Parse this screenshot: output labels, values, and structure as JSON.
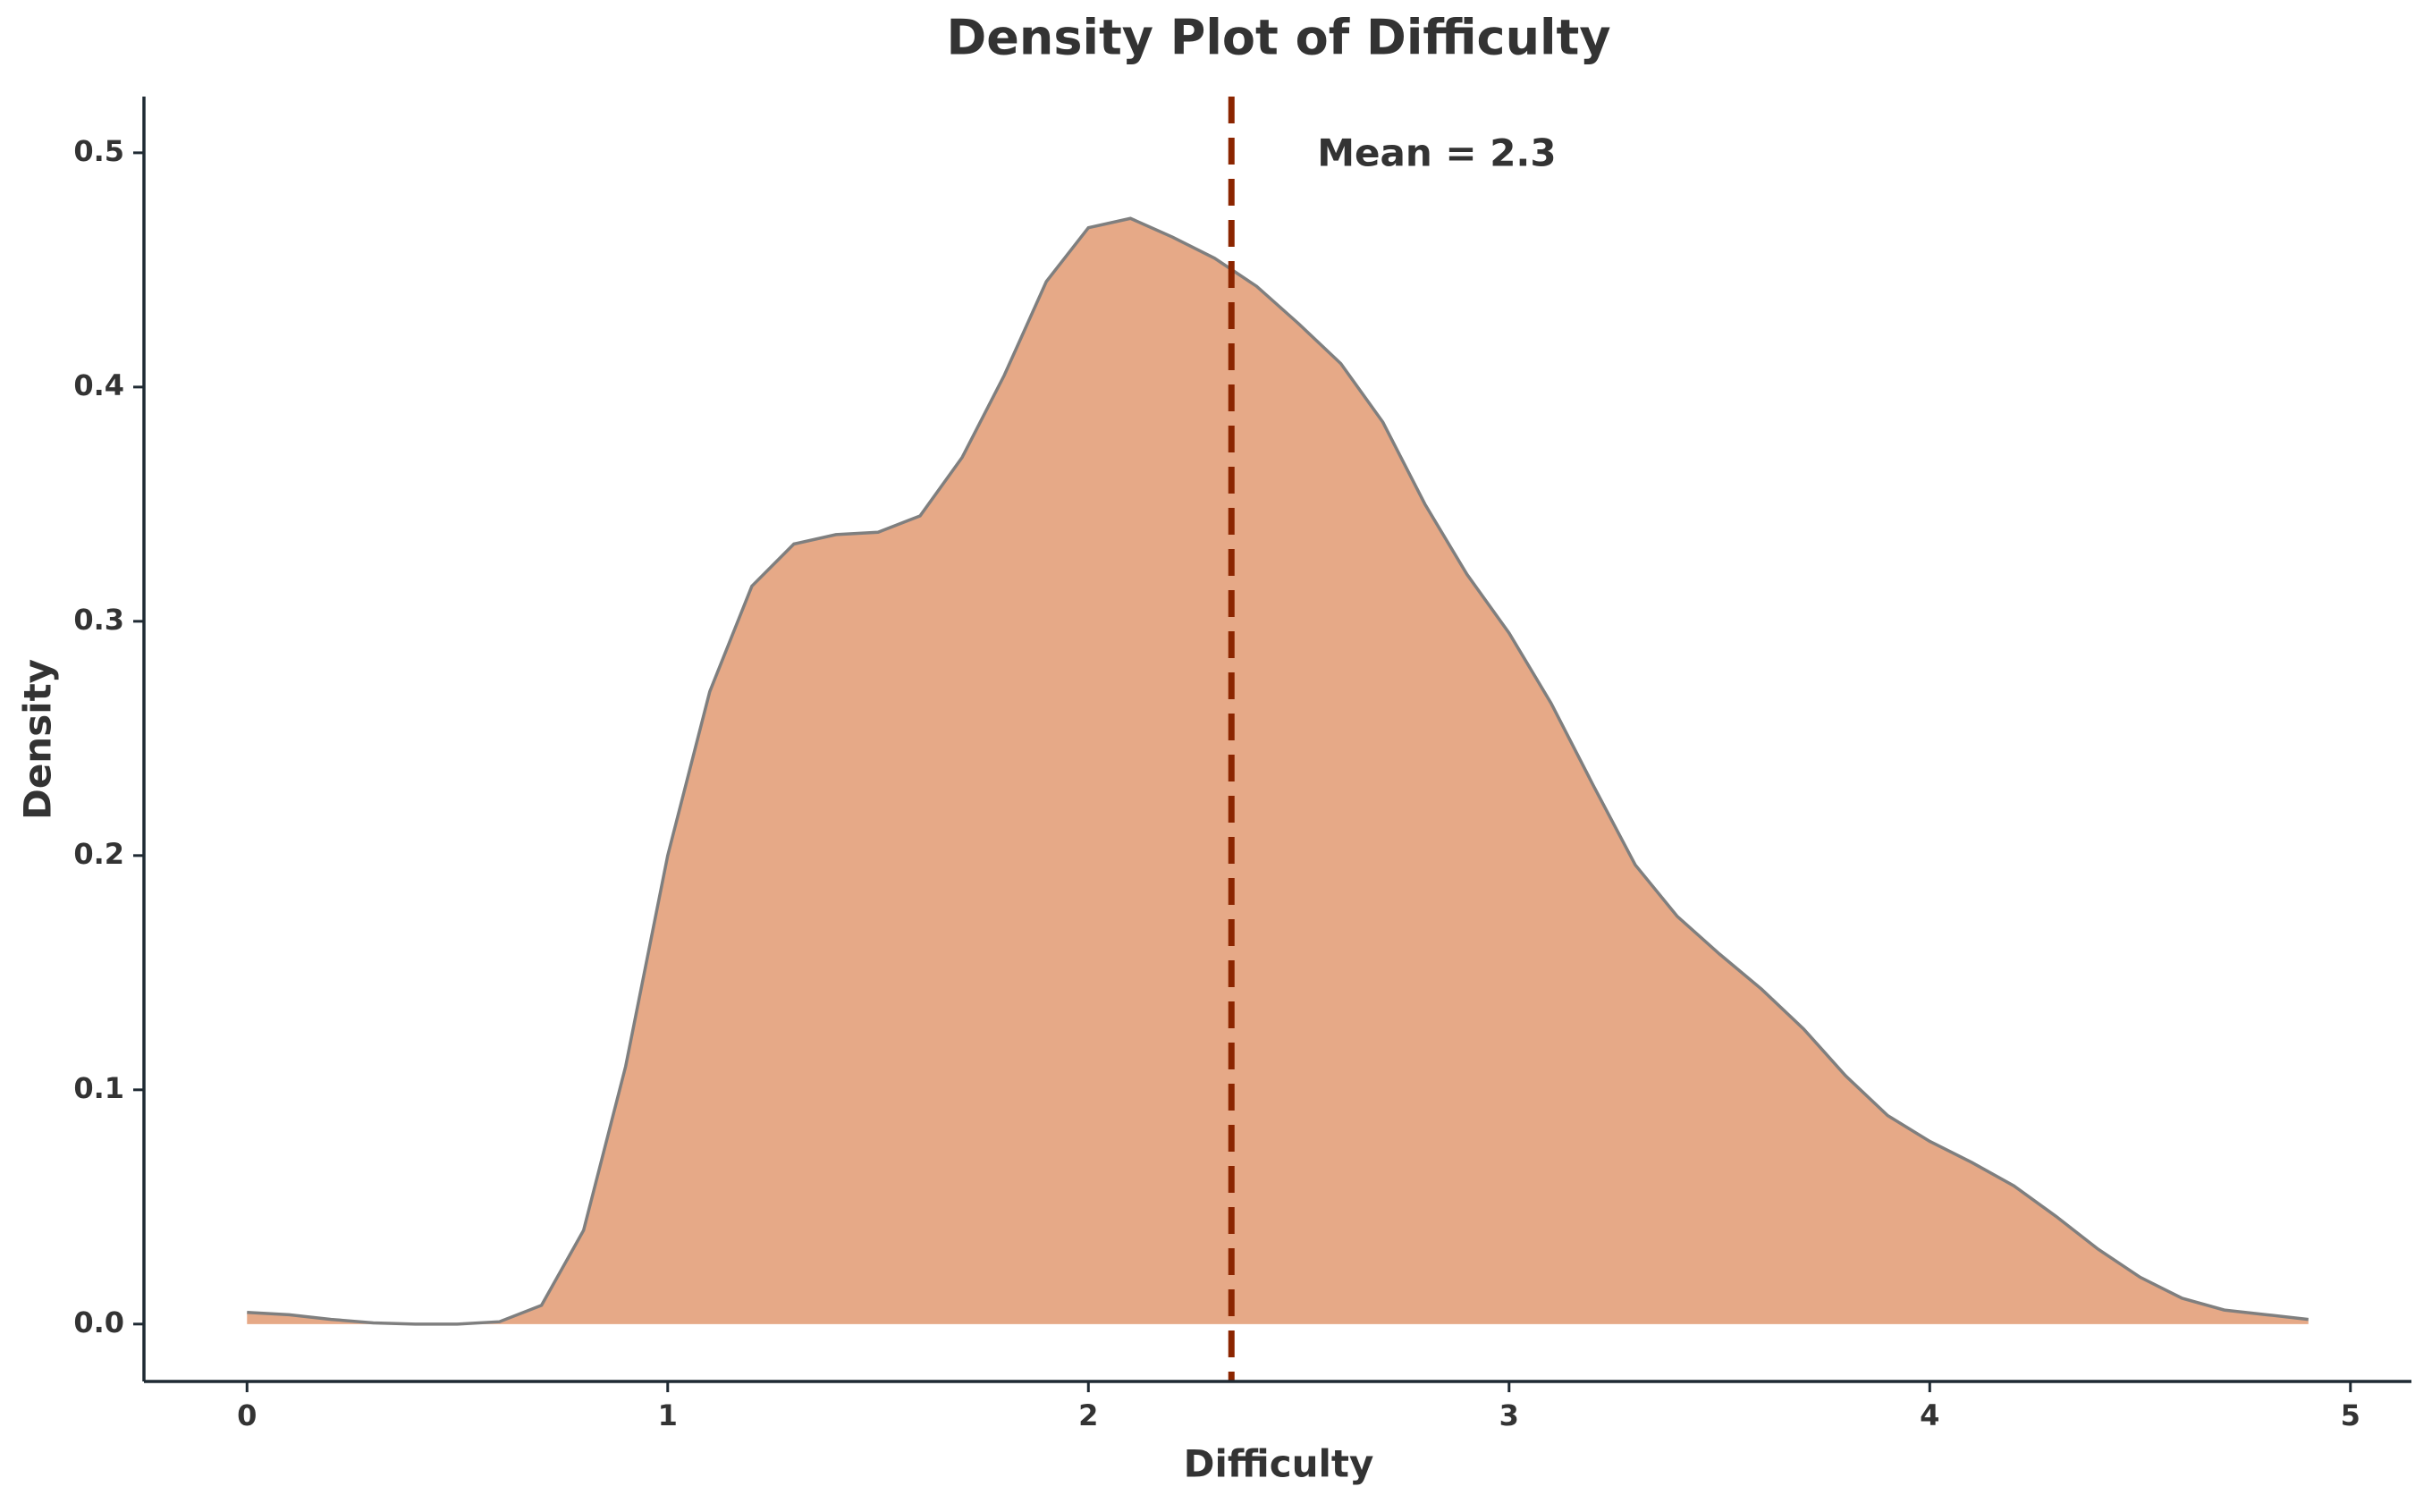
{
  "chart_data": {
    "type": "density",
    "title": "Density Plot of Difficulty",
    "x_label": "Difficulty",
    "y_label": "Density",
    "x": [
      0,
      0.1,
      0.2,
      0.3,
      0.4,
      0.5,
      0.6,
      0.7,
      0.8,
      0.9,
      1.0,
      1.1,
      1.2,
      1.3,
      1.4,
      1.5,
      1.6,
      1.7,
      1.8,
      1.9,
      2.0,
      2.1,
      2.2,
      2.3,
      2.4,
      2.5,
      2.6,
      2.7,
      2.8,
      2.9,
      3.0,
      3.1,
      3.2,
      3.3,
      3.4,
      3.5,
      3.6,
      3.7,
      3.8,
      3.9,
      4.0,
      4.1,
      4.2,
      4.3,
      4.4,
      4.5,
      4.6,
      4.7,
      4.8,
      4.9
    ],
    "values": [
      0.005,
      0.004,
      0.002,
      0.0005,
      0,
      0,
      0.001,
      0.008,
      0.04,
      0.11,
      0.2,
      0.27,
      0.315,
      0.333,
      0.337,
      0.338,
      0.345,
      0.37,
      0.405,
      0.445,
      0.468,
      0.472,
      0.464,
      0.455,
      0.443,
      0.427,
      0.41,
      0.385,
      0.35,
      0.32,
      0.295,
      0.265,
      0.23,
      0.196,
      0.174,
      0.158,
      0.143,
      0.126,
      0.106,
      0.089,
      0.078,
      0.069,
      0.059,
      0.046,
      0.032,
      0.02,
      0.011,
      0.006,
      0.004,
      0.002
    ],
    "fill_color": "#e6a987",
    "line_color": "#7f7f7f",
    "mean": {
      "value": 2.34,
      "label": "Mean = 2.3",
      "color": "#8b2500"
    },
    "xlim": [
      -0.245,
      5.145
    ],
    "xticks": [
      0,
      1,
      2,
      3,
      4,
      5
    ],
    "ylim": [
      -0.0245,
      0.524
    ],
    "yticks": [
      {
        "value": 0,
        "label": "0.0"
      },
      0.1,
      0.2,
      0.3,
      0.4,
      0.5
    ]
  }
}
